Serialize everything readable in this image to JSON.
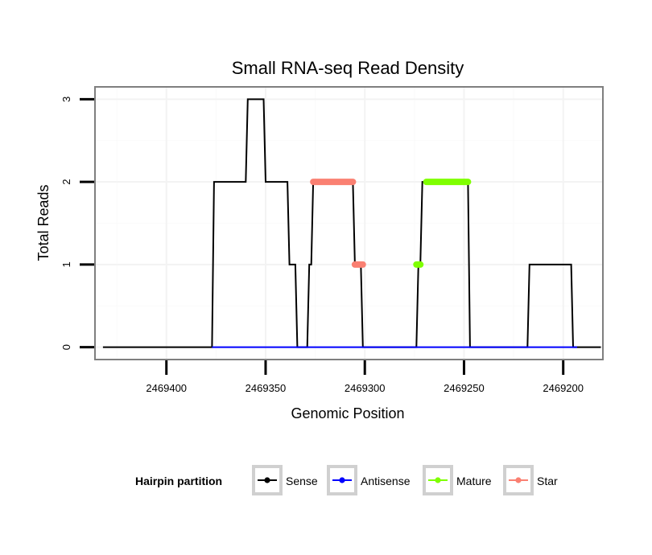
{
  "chart_data": {
    "type": "line",
    "title": "Small RNA-seq Read Density",
    "xlabel": "Genomic Position",
    "ylabel": "Total Reads",
    "x_reversed": true,
    "xlim": [
      2469436,
      2469180
    ],
    "ylim": [
      -0.15,
      3.15
    ],
    "x_ticks": [
      2469400,
      2469350,
      2469300,
      2469250,
      2469200
    ],
    "x_tick_labels": [
      "2469400",
      "2469350",
      "2469300",
      "2469250",
      "2469200"
    ],
    "y_ticks": [
      0,
      1,
      2,
      3
    ],
    "y_tick_labels": [
      "0",
      "1",
      "2",
      "3"
    ],
    "grid": true,
    "legend_position": "bottom",
    "legend_title": "Hairpin partition",
    "series": [
      {
        "name": "Sense",
        "color": "#000000",
        "points": [
          [
            2469432,
            0
          ],
          [
            2469377,
            0
          ],
          [
            2469376,
            2
          ],
          [
            2469360,
            2
          ],
          [
            2469359,
            3
          ],
          [
            2469351,
            3
          ],
          [
            2469350,
            2
          ],
          [
            2469339,
            2
          ],
          [
            2469338,
            1
          ],
          [
            2469335,
            1
          ],
          [
            2469334,
            0
          ],
          [
            2469329,
            0
          ],
          [
            2469328,
            1
          ],
          [
            2469327,
            1
          ],
          [
            2469326,
            2
          ],
          [
            2469306,
            2
          ],
          [
            2469305,
            1
          ],
          [
            2469302,
            1
          ],
          [
            2469301,
            0
          ],
          [
            2469274,
            0
          ],
          [
            2469273,
            1
          ],
          [
            2469272,
            1
          ],
          [
            2469271,
            2
          ],
          [
            2469248,
            2
          ],
          [
            2469247,
            0
          ],
          [
            2469218,
            0
          ],
          [
            2469217,
            1
          ],
          [
            2469196,
            1
          ],
          [
            2469195,
            0
          ],
          [
            2469181,
            0
          ]
        ]
      },
      {
        "name": "Antisense",
        "color": "#0000ff",
        "points": [
          [
            2469377,
            0
          ],
          [
            2469193,
            0
          ]
        ]
      },
      {
        "name": "Mature",
        "color": "#7fff00",
        "segments": [
          [
            [
              2469274,
              1
            ],
            [
              2469272,
              1
            ]
          ],
          [
            [
              2469269,
              2
            ],
            [
              2469248,
              2
            ]
          ]
        ]
      },
      {
        "name": "Star",
        "color": "#fa8072",
        "segments": [
          [
            [
              2469326,
              2
            ],
            [
              2469306,
              2
            ]
          ],
          [
            [
              2469305,
              1
            ],
            [
              2469301,
              1
            ]
          ]
        ]
      }
    ]
  }
}
